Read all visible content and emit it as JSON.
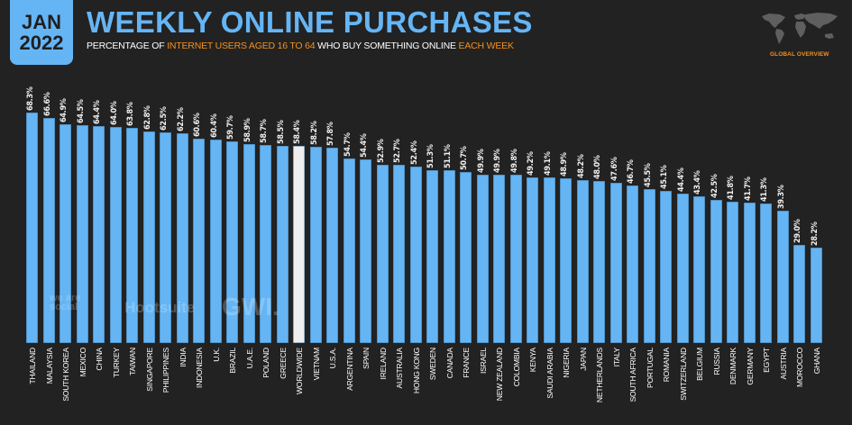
{
  "header": {
    "badge_month": "JAN",
    "badge_year": "2022",
    "title": "WEEKLY ONLINE PURCHASES",
    "subtitle_parts": [
      "PERCENTAGE OF ",
      "INTERNET USERS AGED 16 TO 64",
      " WHO BUY SOMETHING ONLINE ",
      "EACH WEEK"
    ],
    "region_label": "GLOBAL OVERVIEW"
  },
  "watermarks": {
    "brand1": "we are social",
    "brand2": "Hootsuite",
    "brand3": "GWI."
  },
  "colors": {
    "background": "#222222",
    "bar": "#65b5f5",
    "highlight_bar": "#eeeeee",
    "accent": "#f4901e",
    "title": "#65b5f5"
  },
  "chart_data": {
    "type": "bar",
    "title": "WEEKLY ONLINE PURCHASES",
    "subtitle": "PERCENTAGE OF INTERNET USERS AGED 16 TO 64 WHO BUY SOMETHING ONLINE EACH WEEK",
    "xlabel": "",
    "ylabel": "",
    "ylim": [
      0,
      70
    ],
    "grid": false,
    "legend": "none",
    "highlight": "WORLDWIDE",
    "categories": [
      "THAILAND",
      "MALAYSIA",
      "SOUTH KOREA",
      "MEXICO",
      "CHINA",
      "TURKEY",
      "TAIWAN",
      "SINGAPORE",
      "PHILIPPINES",
      "INDIA",
      "INDONESIA",
      "U.K.",
      "BRAZIL",
      "U.A.E.",
      "POLAND",
      "GREECE",
      "WORLDWIDE",
      "VIETNAM",
      "U.S.A.",
      "ARGENTINA",
      "SPAIN",
      "IRELAND",
      "AUSTRALIA",
      "HONG KONG",
      "SWEDEN",
      "CANADA",
      "FRANCE",
      "ISRAEL",
      "NEW ZEALAND",
      "COLOMBIA",
      "KENYA",
      "SAUDI ARABIA",
      "NIGERIA",
      "JAPAN",
      "NETHERLANDS",
      "ITALY",
      "SOUTH AFRICA",
      "PORTUGAL",
      "ROMANIA",
      "SWITZERLAND",
      "BELGIUM",
      "RUSSIA",
      "DENMARK",
      "GERMANY",
      "EGYPT",
      "AUSTRIA",
      "MOROCCO",
      "GHANA"
    ],
    "values": [
      68.3,
      66.6,
      64.9,
      64.5,
      64.4,
      64.0,
      63.8,
      62.8,
      62.5,
      62.2,
      60.6,
      60.4,
      59.7,
      58.9,
      58.7,
      58.5,
      58.4,
      58.2,
      57.8,
      54.7,
      54.4,
      52.9,
      52.7,
      52.4,
      51.3,
      51.1,
      50.7,
      49.9,
      49.9,
      49.8,
      49.2,
      49.1,
      48.9,
      48.2,
      48.0,
      47.6,
      46.7,
      45.5,
      45.1,
      44.4,
      43.4,
      42.5,
      41.8,
      41.7,
      41.3,
      39.3,
      29.0,
      28.2
    ],
    "value_labels": [
      "68.3%",
      "66.6%",
      "64.9%",
      "64.5%",
      "64.4%",
      "64.0%",
      "63.8%",
      "62.8%",
      "62.5%",
      "62.2%",
      "60.6%",
      "60.4%",
      "59.7%",
      "58.9%",
      "58.7%",
      "58.5%",
      "58.4%",
      "58.2%",
      "57.8%",
      "54.7%",
      "54.4%",
      "52.9%",
      "52.7%",
      "52.4%",
      "51.3%",
      "51.1%",
      "50.7%",
      "49.9%",
      "49.9%",
      "49.8%",
      "49.2%",
      "49.1%",
      "48.9%",
      "48.2%",
      "48.0%",
      "47.6%",
      "46.7%",
      "45.5%",
      "45.1%",
      "44.4%",
      "43.4%",
      "42.5%",
      "41.8%",
      "41.7%",
      "41.3%",
      "39.3%",
      "29.0%",
      "28.2%"
    ]
  }
}
